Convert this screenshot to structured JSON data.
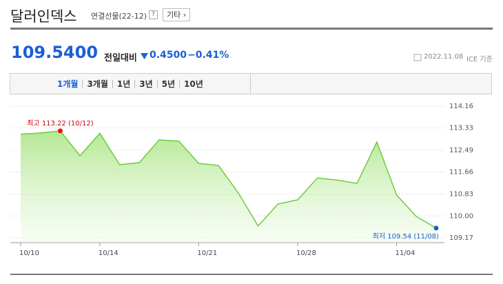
{
  "header": {
    "title": "달러인덱스",
    "subtitle": "연결선물(22-12)",
    "help": "?",
    "button": "기타 ›"
  },
  "price": {
    "value": "109.5400",
    "change_label": "전일대비",
    "change": "0.4500",
    "percent": "−0.41%",
    "date": "2022.11.08",
    "source": "ICE 기준"
  },
  "tabs": [
    "1개월",
    "3개월",
    "1년",
    "3년",
    "5년",
    "10년"
  ],
  "chart_data": {
    "type": "line",
    "categories": [
      "10/10",
      null,
      null,
      null,
      "10/14",
      null,
      null,
      null,
      null,
      "10/21",
      null,
      null,
      null,
      null,
      "10/28",
      null,
      null,
      null,
      null,
      "11/04",
      null,
      null
    ],
    "series": [
      {
        "name": "달러인덱스",
        "color": "#6ccc3c",
        "values": [
          113.09,
          113.14,
          113.22,
          112.28,
          113.13,
          111.94,
          112.02,
          112.88,
          112.83,
          111.99,
          111.91,
          110.87,
          109.62,
          110.45,
          110.61,
          111.44,
          111.36,
          111.23,
          112.8,
          110.79,
          109.98,
          109.54
        ]
      }
    ],
    "annotations": {
      "high": "최고 113.22 (10/12)",
      "low": "최저 109.54 (11/08)"
    },
    "high_color": "#ee1111",
    "low_color": "#1a5fd6",
    "ylim": [
      108.99,
      114.26
    ],
    "yticks": [
      114.16,
      113.33,
      112.49,
      111.66,
      110.83,
      {
        "value": 110,
        "label": "110.00"
      },
      109.17
    ],
    "grid": true
  }
}
